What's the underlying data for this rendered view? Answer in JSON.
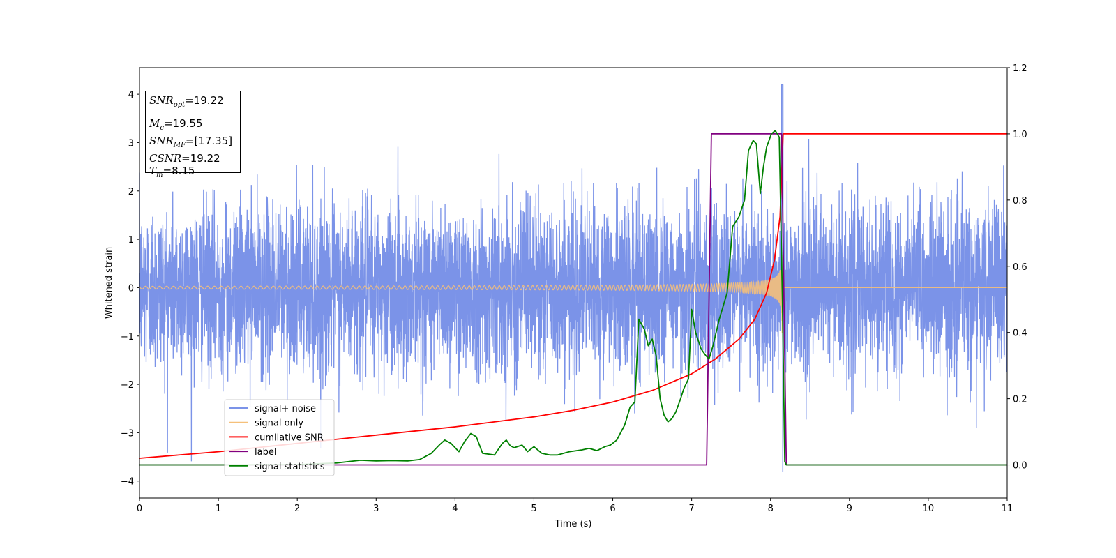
{
  "chart_data": {
    "type": "line",
    "xlabel": "Time (s)",
    "ylabel": "Whitened strain",
    "xlim": [
      0,
      11
    ],
    "ylim_left": [
      -4.35,
      4.55
    ],
    "ylim_right": [
      -0.1,
      1.2
    ],
    "x_ticks": [
      "0",
      "1",
      "2",
      "3",
      "4",
      "5",
      "6",
      "7",
      "8",
      "9",
      "10",
      "11"
    ],
    "y_left_ticks": [
      "4",
      "3",
      "2",
      "1",
      "0",
      "−1",
      "−2",
      "−3",
      "−4"
    ],
    "y_right_ticks": [
      "1.2",
      "1.0",
      "0.8",
      "0.6",
      "0.4",
      "0.2",
      "0.0"
    ],
    "legend_placement": "lower-left",
    "grid": false,
    "annotation": {
      "snr_opt": "=19.22",
      "mc": "=19.55",
      "snr_mf": "=[17.35]",
      "csnr": "=19.22",
      "tm": "=8.15"
    },
    "series": [
      {
        "name": "signal+ noise",
        "axis": "left",
        "color": "#7b93e8",
        "note": "white noise, std ~0.9, with spikes up to ~4.2 near t=8.15"
      },
      {
        "name": "signal only",
        "axis": "left",
        "color": "#f5c07a",
        "chirp_end": 8.15,
        "amplitude_start": 0.02,
        "amplitude_end": 3.6
      },
      {
        "name": "cumilative SNR",
        "axis": "right",
        "color": "#ff0000",
        "x": [
          0,
          1,
          2,
          3,
          4,
          5,
          5.5,
          6,
          6.5,
          7,
          7.3,
          7.6,
          7.8,
          7.95,
          8.05,
          8.12,
          8.16,
          8.2,
          11
        ],
        "y": [
          0.02,
          0.04,
          0.065,
          0.09,
          0.115,
          0.145,
          0.165,
          0.19,
          0.225,
          0.275,
          0.32,
          0.38,
          0.44,
          0.52,
          0.62,
          0.75,
          1.0,
          1.0,
          1.0
        ]
      },
      {
        "name": "label",
        "axis": "right",
        "color": "#800080",
        "x": [
          0,
          7.19,
          7.25,
          8.14,
          8.2,
          11
        ],
        "y": [
          0.0,
          0.0,
          1.0,
          1.0,
          0.0,
          0.0
        ]
      },
      {
        "name": "signal statistics",
        "axis": "right",
        "color": "#008000",
        "x": [
          0,
          1,
          2,
          2.5,
          2.8,
          3.0,
          3.2,
          3.4,
          3.55,
          3.7,
          3.8,
          3.87,
          3.95,
          4.05,
          4.12,
          4.2,
          4.27,
          4.35,
          4.5,
          4.6,
          4.65,
          4.7,
          4.75,
          4.85,
          4.92,
          5.0,
          5.1,
          5.2,
          5.3,
          5.45,
          5.6,
          5.7,
          5.8,
          5.9,
          5.97,
          6.05,
          6.15,
          6.22,
          6.28,
          6.33,
          6.4,
          6.45,
          6.5,
          6.55,
          6.6,
          6.65,
          6.7,
          6.75,
          6.8,
          6.86,
          6.9,
          6.96,
          7.0,
          7.05,
          7.12,
          7.18,
          7.22,
          7.27,
          7.35,
          7.45,
          7.52,
          7.6,
          7.67,
          7.72,
          7.78,
          7.82,
          7.87,
          7.91,
          7.95,
          8.01,
          8.06,
          8.11,
          8.15,
          8.18,
          8.2,
          8.25,
          11
        ],
        "y": [
          0.0,
          0.0,
          0.001,
          0.006,
          0.014,
          0.012,
          0.013,
          0.012,
          0.016,
          0.035,
          0.06,
          0.075,
          0.065,
          0.04,
          0.07,
          0.095,
          0.085,
          0.035,
          0.03,
          0.065,
          0.075,
          0.058,
          0.052,
          0.06,
          0.04,
          0.055,
          0.035,
          0.03,
          0.03,
          0.04,
          0.045,
          0.05,
          0.043,
          0.055,
          0.06,
          0.075,
          0.12,
          0.175,
          0.19,
          0.44,
          0.41,
          0.36,
          0.38,
          0.33,
          0.2,
          0.15,
          0.13,
          0.14,
          0.16,
          0.2,
          0.23,
          0.26,
          0.47,
          0.4,
          0.35,
          0.33,
          0.32,
          0.36,
          0.44,
          0.52,
          0.72,
          0.75,
          0.8,
          0.95,
          0.98,
          0.97,
          0.82,
          0.9,
          0.96,
          1.0,
          1.01,
          0.99,
          0.5,
          0.01,
          0.0,
          0.0,
          0.0
        ]
      }
    ]
  }
}
